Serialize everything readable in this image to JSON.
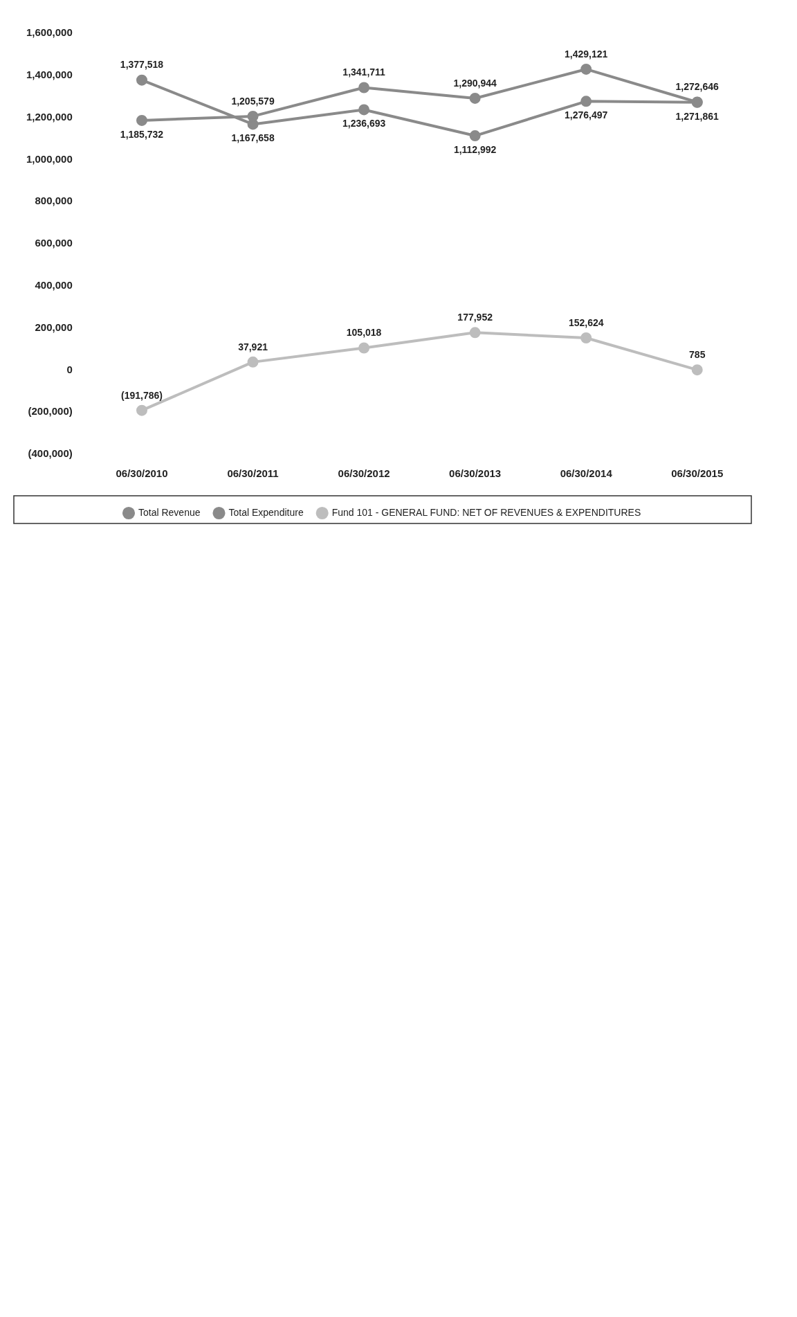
{
  "chart_data": {
    "type": "line",
    "categories": [
      "06/30/2010",
      "06/30/2011",
      "06/30/2012",
      "06/30/2013",
      "06/30/2014",
      "06/30/2015"
    ],
    "series": [
      {
        "name": "Total Revenue",
        "color": "#8a8a8a",
        "values": [
          1185732,
          1205579,
          1341711,
          1290944,
          1429121,
          1272646
        ],
        "value_labels": [
          "1,185,732",
          "1,205,579",
          "1,341,711",
          "1,290,944",
          "1,429,121",
          "1,272,646"
        ]
      },
      {
        "name": "Total Expenditure",
        "color": "#8a8a8a",
        "values": [
          1377518,
          1167658,
          1236693,
          1112992,
          1276497,
          1271861
        ],
        "value_labels": [
          "1,377,518",
          "1,167,658",
          "1,236,693",
          "1,112,992",
          "1,276,497",
          "1,271,861"
        ]
      },
      {
        "name": "Fund 101 - GENERAL FUND: NET OF REVENUES & EXPENDITURES",
        "color": "#bdbdbd",
        "values": [
          -191786,
          37921,
          105018,
          177952,
          152624,
          785
        ],
        "value_labels": [
          "(191,786)",
          "37,921",
          "105,018",
          "177,952",
          "152,624",
          "785"
        ]
      }
    ],
    "ylim": [
      -400000,
      1600000
    ],
    "yticks": [
      {
        "value": -400000,
        "label": "(400,000)"
      },
      {
        "value": -200000,
        "label": "(200,000)"
      },
      {
        "value": 0,
        "label": "0"
      },
      {
        "value": 200000,
        "label": "200,000"
      },
      {
        "value": 400000,
        "label": "400,000"
      },
      {
        "value": 600000,
        "label": "600,000"
      },
      {
        "value": 800000,
        "label": "800,000"
      },
      {
        "value": 1000000,
        "label": "1,000,000"
      },
      {
        "value": 1200000,
        "label": "1,200,000"
      },
      {
        "value": 1400000,
        "label": "1,400,000"
      },
      {
        "value": 1600000,
        "label": "1,600,000"
      }
    ],
    "grid": false,
    "legend": "bottom",
    "marker": "circle",
    "line_style": "solid"
  }
}
